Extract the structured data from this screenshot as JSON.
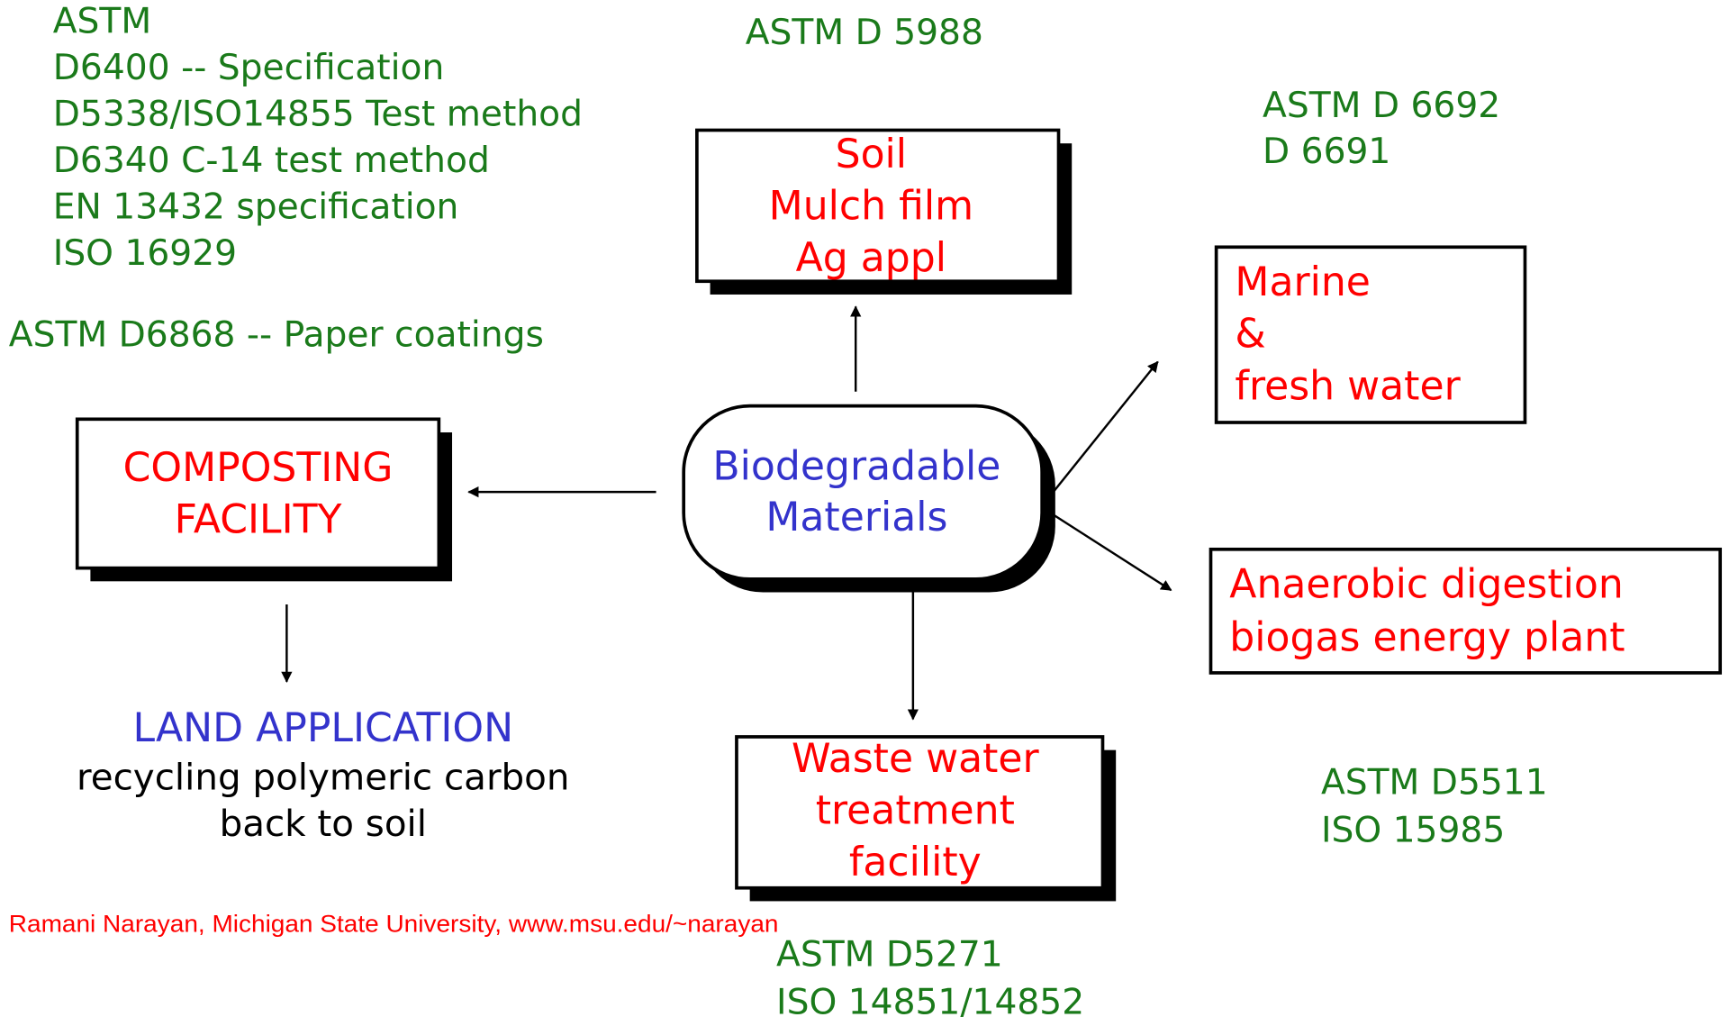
{
  "standards": {
    "top_left": [
      "ASTM",
      "D6400 -- Specification",
      "D5338/ISO14855 Test method",
      "D6340 C-14 test method",
      "EN 13432 specification",
      "ISO 16929"
    ],
    "paper": "ASTM D6868 -- Paper coatings",
    "soil": [
      "ASTM D 5988"
    ],
    "marine": [
      "ASTM D 6692",
      "D 6691"
    ],
    "anaerobic": [
      "ASTM D5511",
      "ISO 15985"
    ],
    "wastewater": [
      "ASTM D5271",
      "ISO 14851/14852"
    ]
  },
  "nodes": {
    "center": [
      "Biodegradable",
      "Materials"
    ],
    "soil": [
      "Soil",
      "Mulch film",
      "Ag appl"
    ],
    "marine": [
      "Marine",
      "&",
      "fresh water"
    ],
    "anaerobic": [
      "Anaerobic digestion",
      "biogas energy plant"
    ],
    "wastewater": [
      "Waste water",
      "treatment",
      "facility"
    ],
    "composting": [
      "COMPOSTING",
      "FACILITY"
    ]
  },
  "land_application": {
    "title": "LAND APPLICATION",
    "lines": [
      "recycling polymeric carbon",
      "back to soil"
    ]
  },
  "credit": "Ramani Narayan, Michigan State University, www.msu.edu/~narayan"
}
